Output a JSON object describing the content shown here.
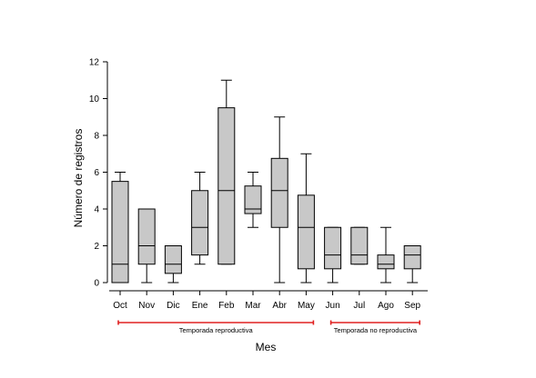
{
  "chart_data": {
    "type": "boxplot",
    "xlabel": "Mes",
    "ylabel": "Número de registros",
    "ylim": [
      0,
      12
    ],
    "yticks": [
      0,
      2,
      4,
      6,
      8,
      10,
      12
    ],
    "grid": false,
    "box_color": "#c8c8c8",
    "categories": [
      "Oct",
      "Nov",
      "Dic",
      "Ene",
      "Feb",
      "Mar",
      "Abr",
      "May",
      "Jun",
      "Jul",
      "Ago",
      "Sep"
    ],
    "boxes": [
      {
        "category": "Oct",
        "whisker_low": 0,
        "q1": 0,
        "median": 1,
        "q3": 5.5,
        "whisker_high": 6
      },
      {
        "category": "Nov",
        "whisker_low": 0,
        "q1": 1,
        "median": 2,
        "q3": 4,
        "whisker_high": 4
      },
      {
        "category": "Dic",
        "whisker_low": 0,
        "q1": 0.5,
        "median": 1,
        "q3": 2,
        "whisker_high": 2
      },
      {
        "category": "Ene",
        "whisker_low": 1,
        "q1": 1.5,
        "median": 3,
        "q3": 5,
        "whisker_high": 6
      },
      {
        "category": "Feb",
        "whisker_low": 1,
        "q1": 1,
        "median": 5,
        "q3": 9.5,
        "whisker_high": 11
      },
      {
        "category": "Mar",
        "whisker_low": 3,
        "q1": 3.75,
        "median": 4,
        "q3": 5.25,
        "whisker_high": 6
      },
      {
        "category": "Abr",
        "whisker_low": 0,
        "q1": 3,
        "median": 5,
        "q3": 6.75,
        "whisker_high": 9
      },
      {
        "category": "May",
        "whisker_low": 0,
        "q1": 0.75,
        "median": 3,
        "q3": 4.75,
        "whisker_high": 7
      },
      {
        "category": "Jun",
        "whisker_low": 0,
        "q1": 0.75,
        "median": 1.5,
        "q3": 3,
        "whisker_high": 3
      },
      {
        "category": "Jul",
        "whisker_low": 1,
        "q1": 1,
        "median": 1.5,
        "q3": 3,
        "whisker_high": 3
      },
      {
        "category": "Ago",
        "whisker_low": 0,
        "q1": 0.75,
        "median": 1,
        "q3": 1.5,
        "whisker_high": 3
      },
      {
        "category": "Sep",
        "whisker_low": 0,
        "q1": 0.75,
        "median": 1.5,
        "q3": 2,
        "whisker_high": 2
      }
    ],
    "annotations": [
      {
        "label": "Temporada reproductiva",
        "from": "Oct",
        "to": "May",
        "color": "#e02020"
      },
      {
        "label": "Temporada no reproductiva",
        "from": "Jun",
        "to": "Sep",
        "color": "#e02020"
      }
    ]
  }
}
